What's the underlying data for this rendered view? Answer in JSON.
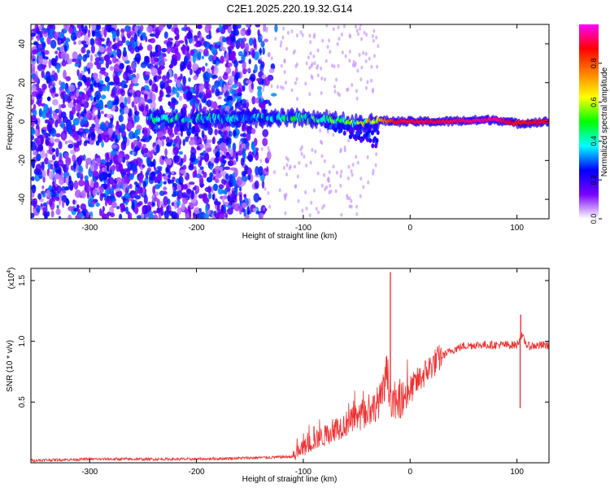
{
  "title": "C2E1.2025.220.19.32.G14",
  "chart_data": [
    {
      "type": "heatmap",
      "xlabel": "Height of straight line (km)",
      "ylabel": "Frequency (Hz)",
      "xlim": [
        -355,
        130
      ],
      "ylim": [
        -50,
        50
      ],
      "xticks": [
        -300,
        -200,
        -100,
        0,
        100
      ],
      "yticks": [
        -40,
        -20,
        0,
        20,
        40
      ],
      "colorbar": {
        "label": "Normalized spectral amplitude",
        "ticks": [
          "0.0",
          "0.2",
          "0.4",
          "0.6",
          "0.8"
        ],
        "tick_values": [
          0.0,
          0.2,
          0.4,
          0.6,
          0.8
        ],
        "range": [
          0,
          1
        ],
        "colormap": [
          "#ffffff",
          "#7b00ff",
          "#0000ff",
          "#00ffff",
          "#00ff00",
          "#ffff00",
          "#ff8000",
          "#ff0000",
          "#ff00ff"
        ]
      },
      "ridge": [
        {
          "x": -240,
          "y": 1.5,
          "amp": 0.4
        },
        {
          "x": -200,
          "y": 1.5,
          "amp": 0.4
        },
        {
          "x": -150,
          "y": 2.0,
          "amp": 0.35
        },
        {
          "x": -110,
          "y": 2.0,
          "amp": 0.45
        },
        {
          "x": -80,
          "y": 1.0,
          "amp": 0.5
        },
        {
          "x": -50,
          "y": -1.0,
          "amp": 0.55
        },
        {
          "x": -30,
          "y": 0.5,
          "amp": 0.7
        },
        {
          "x": -10,
          "y": 0.0,
          "amp": 0.9
        },
        {
          "x": 30,
          "y": 0.0,
          "amp": 0.9
        },
        {
          "x": 80,
          "y": 1.0,
          "amp": 0.95
        },
        {
          "x": 100,
          "y": -1.0,
          "amp": 0.85
        },
        {
          "x": 130,
          "y": 0.0,
          "amp": 0.9
        }
      ]
    },
    {
      "type": "line",
      "xlabel": "Height of straight line (km)",
      "ylabel": "SNR (10 * v/v)",
      "yscale_label": "(x10",
      "yscale_exp": "4",
      "yscale_close": ")",
      "xlim": [
        -355,
        130
      ],
      "ylim": [
        0,
        1.6
      ],
      "xticks": [
        -300,
        -200,
        -100,
        0,
        100
      ],
      "yticks": [
        "0.5",
        "1.0",
        "1.5"
      ],
      "ytick_values": [
        0.5,
        1.0,
        1.5
      ],
      "color": "#ee3333",
      "series": [
        {
          "x": [
            -355,
            -300,
            -250,
            -200,
            -150,
            -110,
            -100,
            -90,
            -80,
            -70,
            -60,
            -50,
            -40,
            -30,
            -25,
            -22,
            -20,
            -18,
            -15,
            -10,
            0,
            10,
            20,
            30,
            40,
            50,
            60,
            80,
            100,
            104,
            110,
            130
          ],
          "y": [
            0.02,
            0.03,
            0.03,
            0.03,
            0.04,
            0.05,
            0.12,
            0.18,
            0.22,
            0.28,
            0.32,
            0.36,
            0.4,
            0.5,
            0.55,
            0.75,
            0.65,
            0.55,
            0.45,
            0.5,
            0.6,
            0.7,
            0.8,
            0.88,
            0.93,
            0.96,
            0.97,
            0.97,
            0.97,
            1.05,
            0.96,
            0.97
          ]
        }
      ],
      "spikes": [
        {
          "x": -18.5,
          "y": 1.57
        },
        {
          "x": -22,
          "y": 0.78
        },
        {
          "x": -90,
          "y": 0.3
        },
        {
          "x": 103.5,
          "y": 1.22
        },
        {
          "x": 103,
          "y": 0.45
        }
      ]
    }
  ]
}
